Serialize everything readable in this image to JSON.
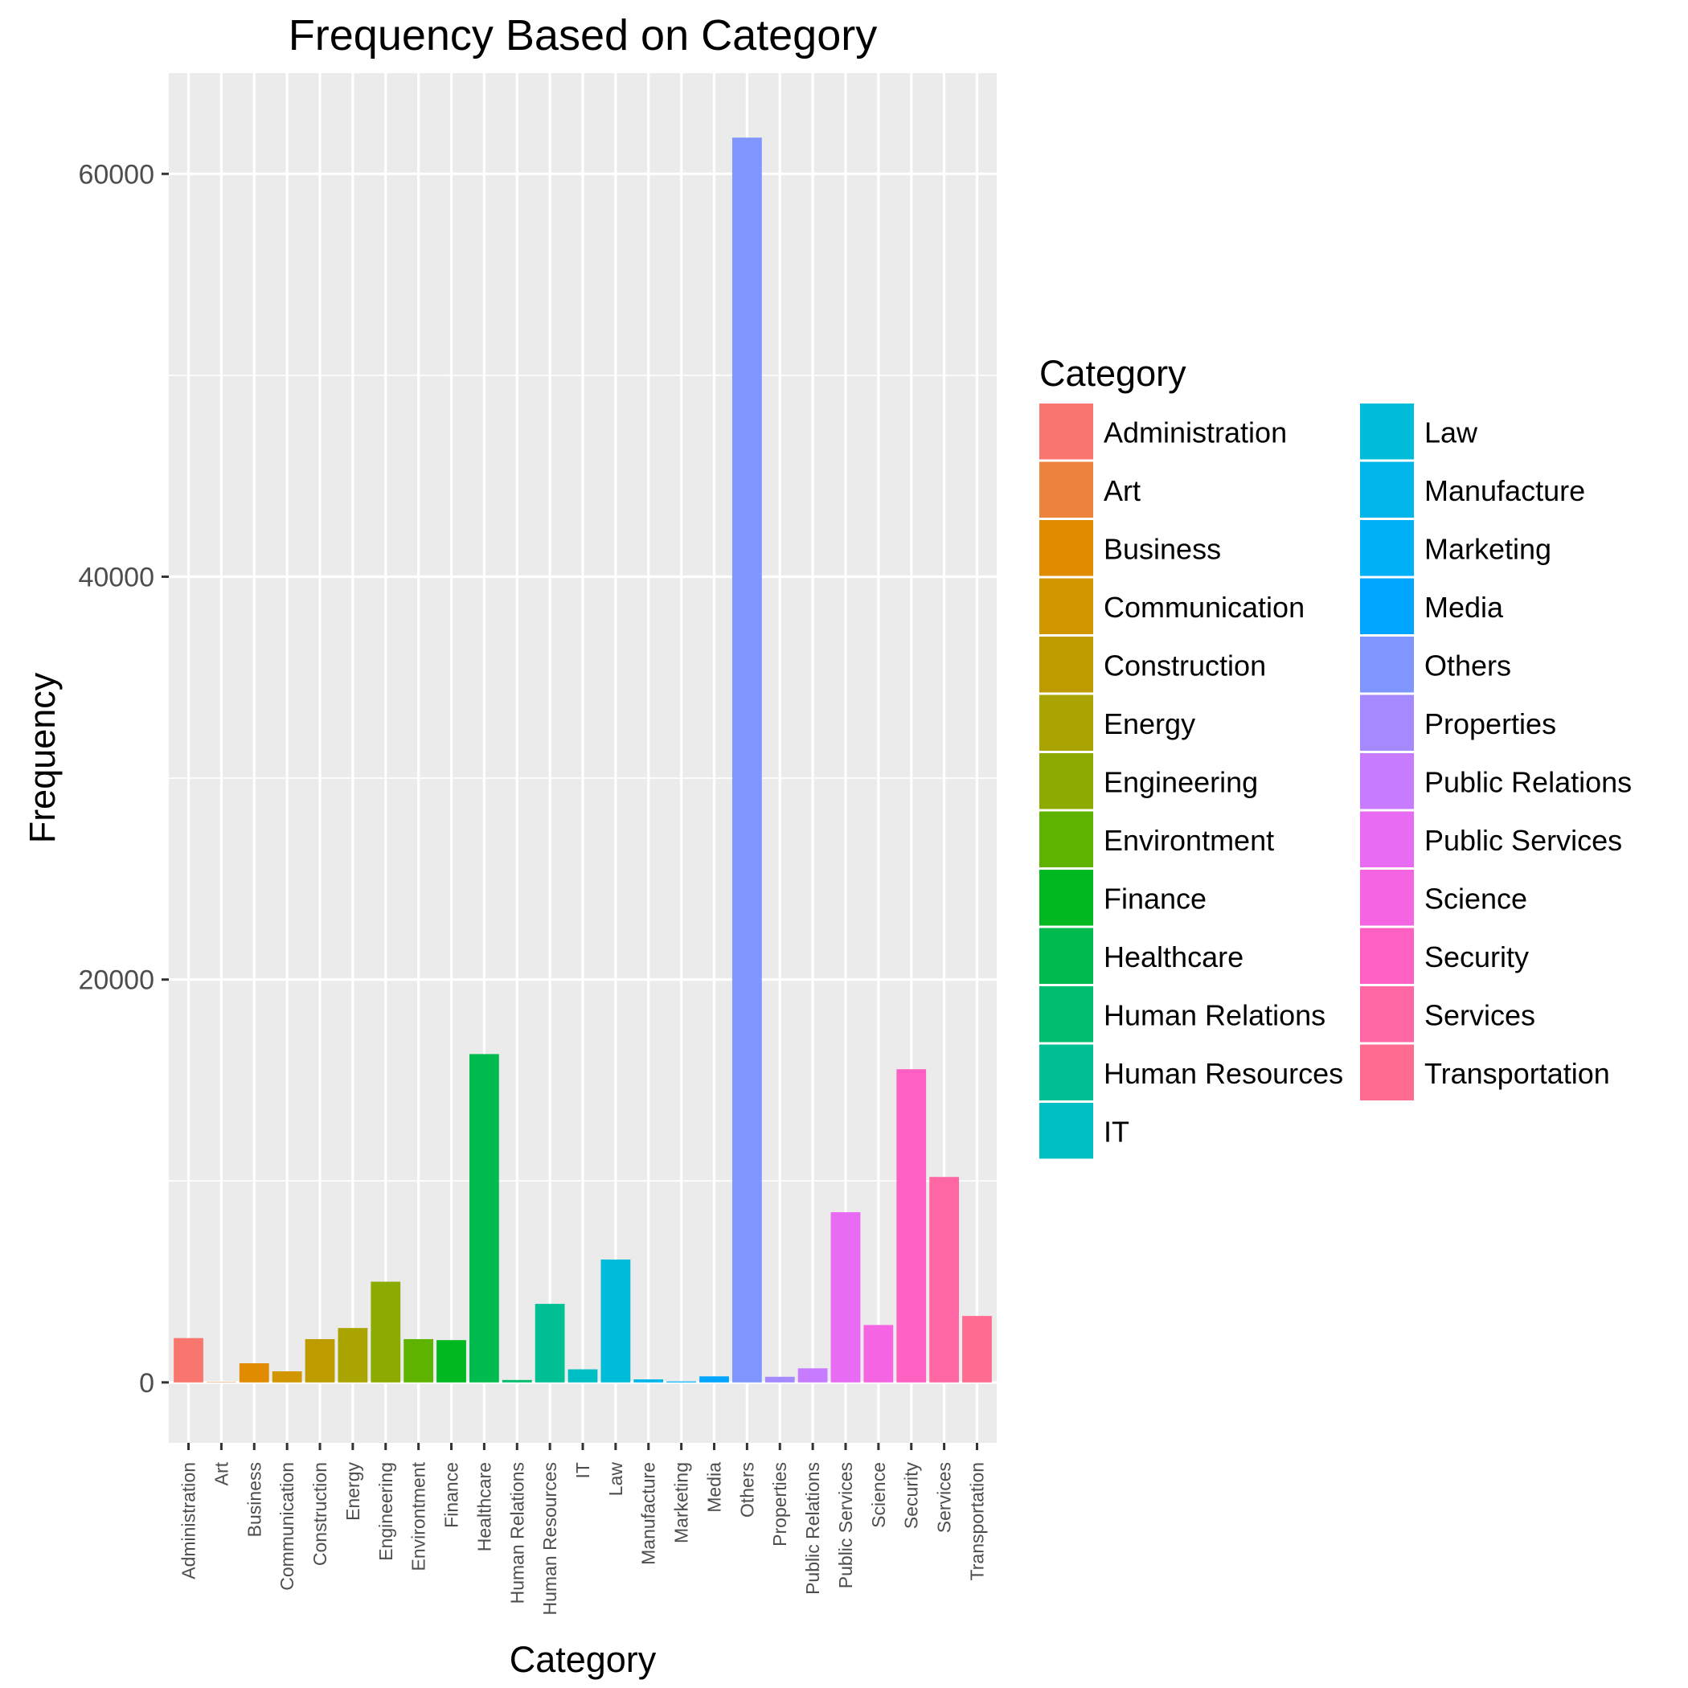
{
  "chart_data": {
    "type": "bar",
    "title": "Frequency Based on Category",
    "xlabel": "Category",
    "ylabel": "Frequency",
    "ylim": [
      -3000,
      65000
    ],
    "yticks": [
      0,
      20000,
      40000,
      60000
    ],
    "grid": true,
    "legend_title": "Category",
    "legend_position": "right",
    "categories": [
      "Administration",
      "Art",
      "Business",
      "Communication",
      "Construction",
      "Energy",
      "Engineering",
      "Environtment",
      "Finance",
      "Healthcare",
      "Human Relations",
      "Human Resources",
      "IT",
      "Law",
      "Manufacture",
      "Marketing",
      "Media",
      "Others",
      "Properties",
      "Public Relations",
      "Public Services",
      "Science",
      "Security",
      "Services",
      "Transportation"
    ],
    "values": [
      2200,
      20,
      950,
      550,
      2150,
      2700,
      5000,
      2150,
      2100,
      16300,
      120,
      3900,
      650,
      6100,
      150,
      50,
      300,
      61800,
      280,
      700,
      8450,
      2850,
      15550,
      10200,
      3300
    ],
    "colors": [
      "#F8766D",
      "#EC823C",
      "#E08B00",
      "#D29600",
      "#BE9C00",
      "#A9A400",
      "#8CAB00",
      "#5EB300",
      "#00B81F",
      "#00BB4E",
      "#00BE6E",
      "#00C094",
      "#00BFC4",
      "#00BCD8",
      "#00B5E9",
      "#00B0F6",
      "#00A5FF",
      "#7F96FF",
      "#A58AFF",
      "#C77CFF",
      "#E76BF3",
      "#F564E3",
      "#FF61C3",
      "#FF67A4",
      "#FF6C91"
    ]
  }
}
